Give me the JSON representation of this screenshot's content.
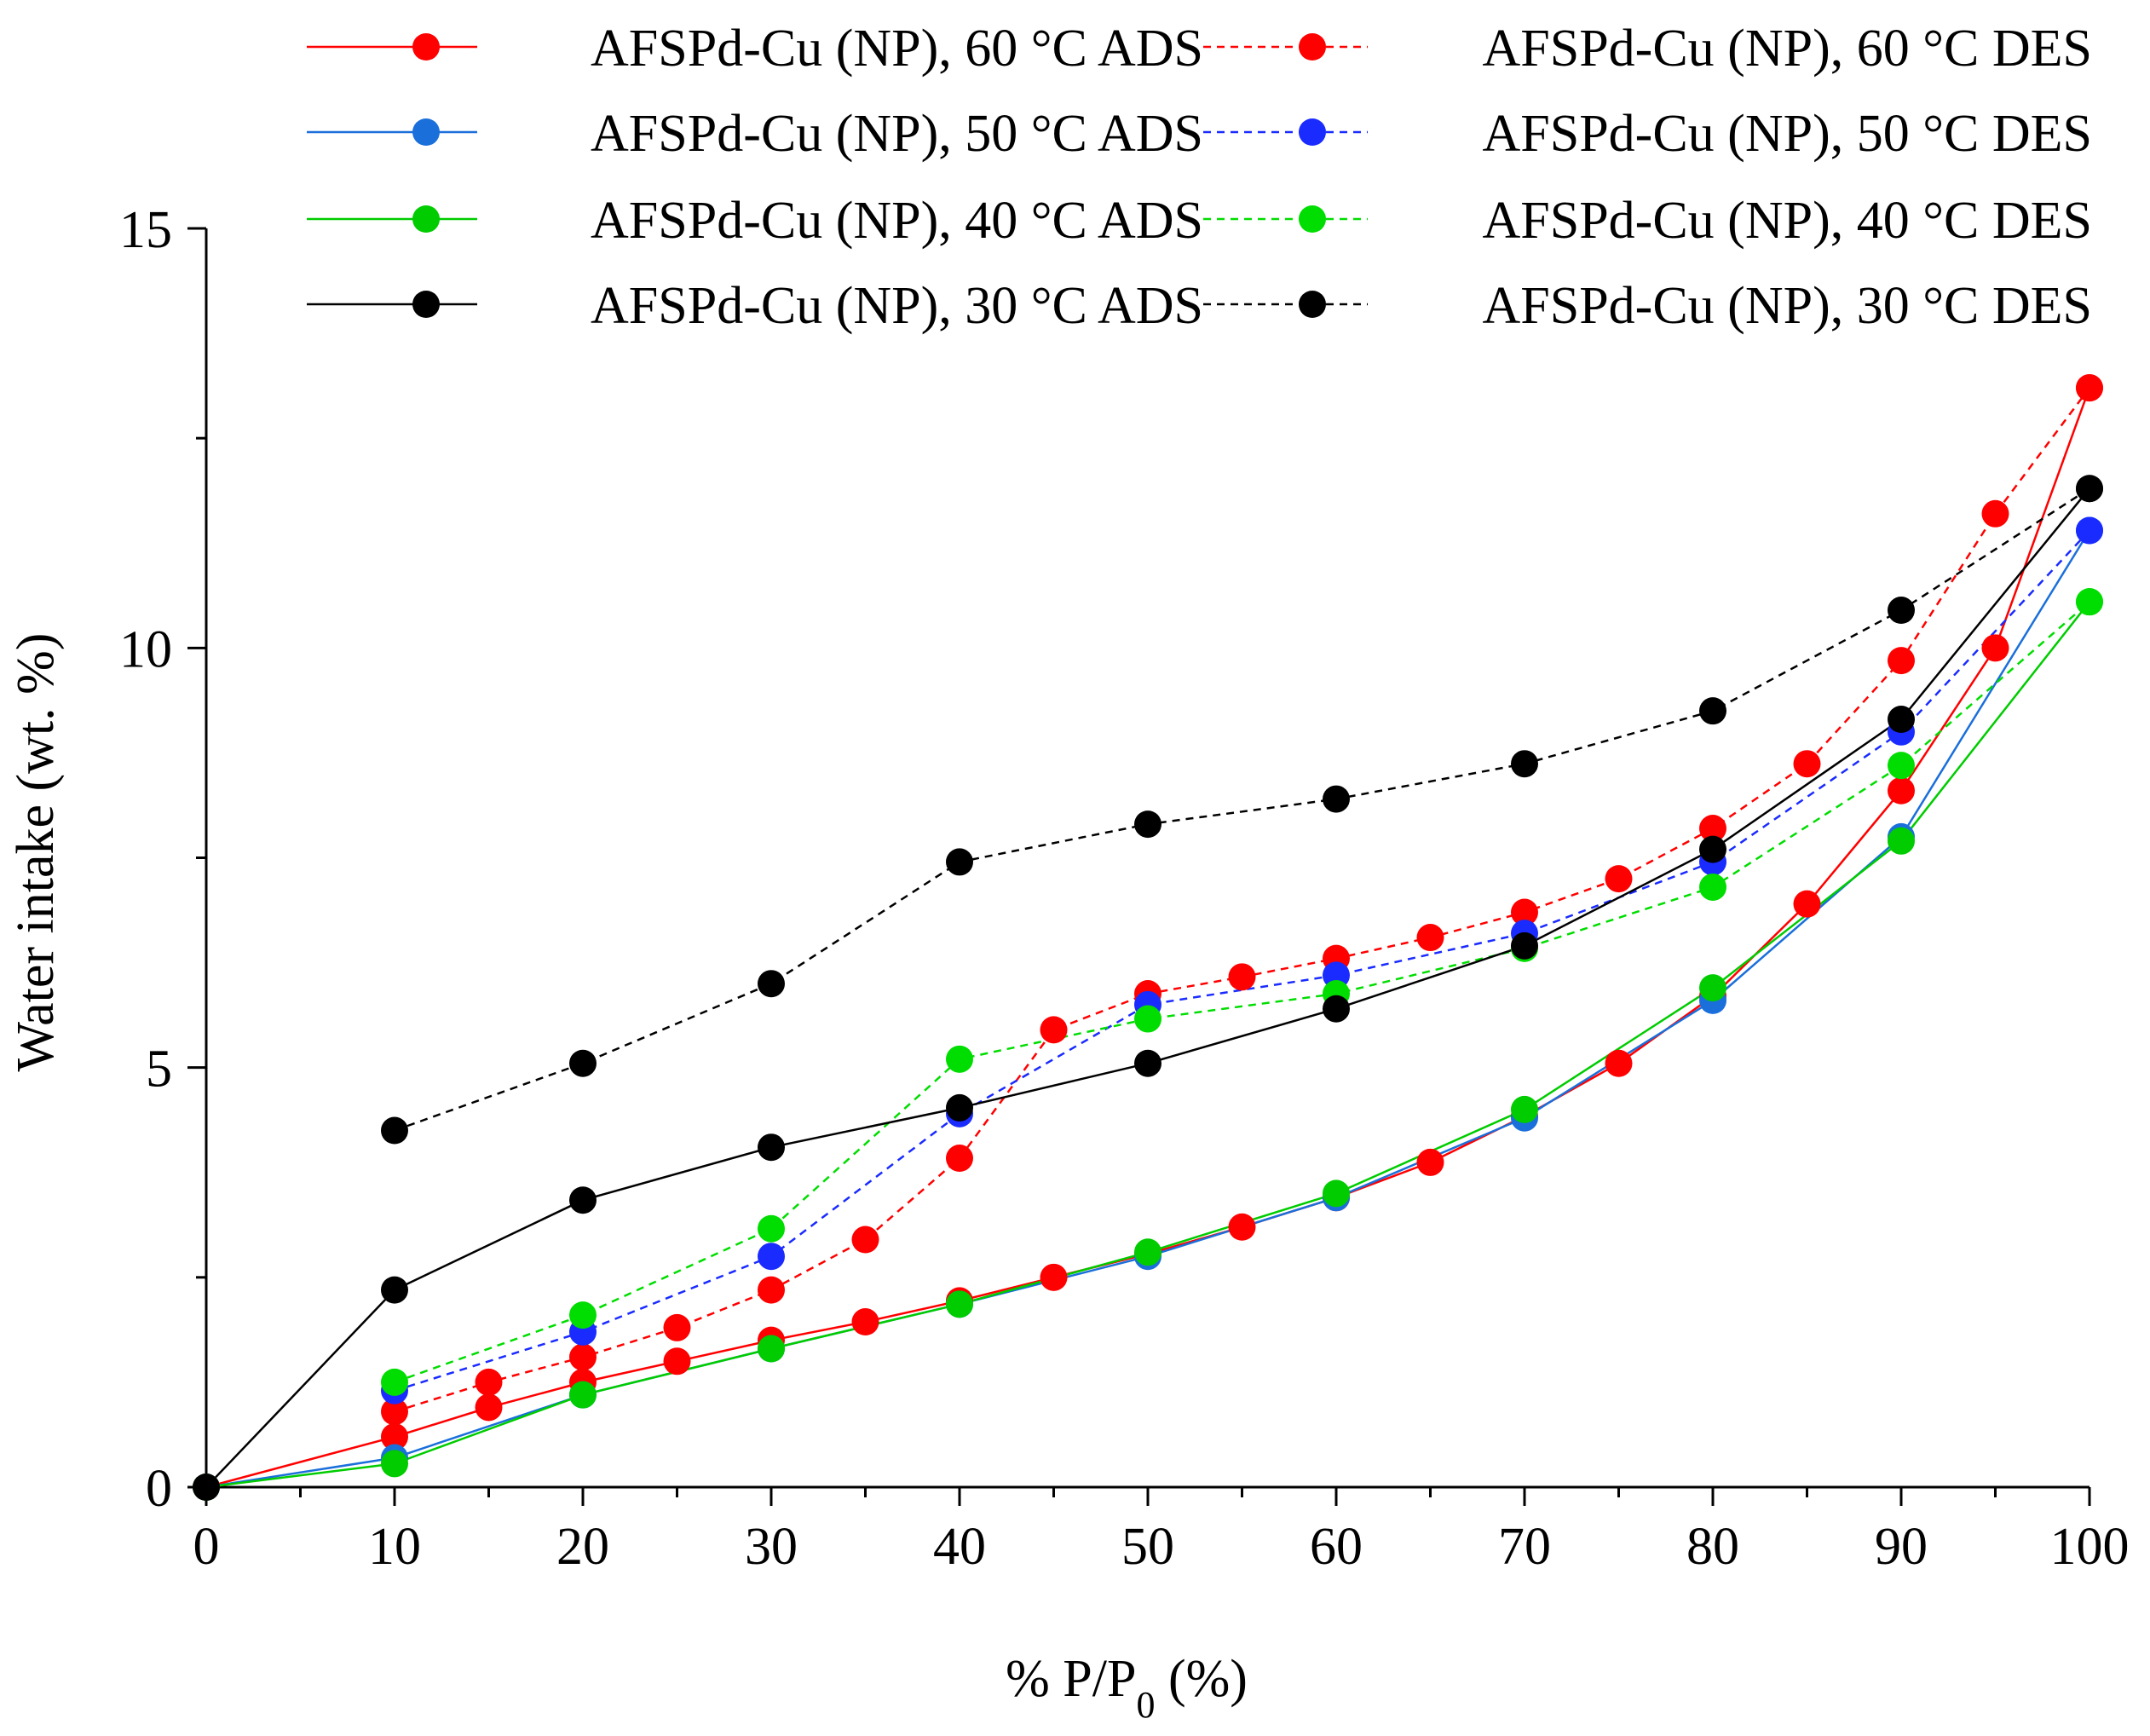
{
  "chart_data": {
    "type": "line",
    "title": "",
    "xlabel_prefix": "% P/P",
    "xlabel_subscript": "0",
    "xlabel_suffix": " (%)",
    "ylabel": "Water intake (wt. %)",
    "xlim": [
      0,
      100
    ],
    "ylim": [
      0,
      15
    ],
    "x_ticks": [
      0,
      10,
      20,
      30,
      40,
      50,
      60,
      70,
      80,
      90,
      100
    ],
    "y_ticks": [
      0,
      5,
      10,
      15
    ],
    "legend_position": "top",
    "series": [
      {
        "name": "AFSPd-Cu (NP), 60 °C ADS",
        "color": "#ff0000",
        "dash": "solid",
        "x": [
          0,
          10,
          15,
          20,
          25,
          30,
          35,
          40,
          45,
          50,
          55,
          60,
          65,
          70,
          75,
          80,
          85,
          90,
          95,
          100
        ],
        "y": [
          0,
          0.6,
          0.95,
          1.25,
          1.5,
          1.75,
          1.97,
          2.22,
          2.5,
          2.78,
          3.1,
          3.45,
          3.87,
          4.42,
          5.05,
          5.85,
          6.95,
          8.3,
          10.0,
          13.1
        ]
      },
      {
        "name": "AFSPd-Cu (NP), 60 °C DES",
        "color": "#ff0000",
        "dash": "dashed",
        "x": [
          10,
          15,
          20,
          25,
          30,
          35,
          40,
          45,
          50,
          55,
          60,
          65,
          70,
          75,
          80,
          85,
          90,
          95,
          100
        ],
        "y": [
          0.9,
          1.25,
          1.55,
          1.9,
          2.35,
          2.95,
          3.92,
          5.45,
          5.88,
          6.08,
          6.3,
          6.55,
          6.85,
          7.25,
          7.85,
          8.62,
          9.85,
          11.6,
          13.1
        ]
      },
      {
        "name": "AFSPd-Cu (NP), 50 °C ADS",
        "color": "#1a6fdb",
        "dash": "solid",
        "x": [
          0,
          10,
          20,
          30,
          40,
          50,
          60,
          70,
          80,
          90,
          100
        ],
        "y": [
          0,
          0.35,
          1.1,
          1.65,
          2.18,
          2.75,
          3.45,
          4.4,
          5.8,
          7.75,
          11.4
        ]
      },
      {
        "name": "AFSPd-Cu (NP), 50 °C DES",
        "color": "#1a2bff",
        "dash": "dashed",
        "x": [
          10,
          20,
          30,
          40,
          50,
          60,
          70,
          80,
          90,
          100
        ],
        "y": [
          1.15,
          1.85,
          2.75,
          4.45,
          5.75,
          6.1,
          6.6,
          7.45,
          9.0,
          11.4
        ]
      },
      {
        "name": "AFSPd-Cu (NP), 40 °C ADS",
        "color": "#00cc00",
        "dash": "solid",
        "x": [
          0,
          10,
          20,
          30,
          40,
          50,
          60,
          70,
          80,
          90,
          100
        ],
        "y": [
          0,
          0.28,
          1.1,
          1.65,
          2.18,
          2.8,
          3.5,
          4.5,
          5.95,
          7.7,
          10.55
        ]
      },
      {
        "name": "AFSPd-Cu (NP), 40 °C DES",
        "color": "#00dd00",
        "dash": "dashed",
        "x": [
          10,
          20,
          30,
          40,
          50,
          60,
          70,
          80,
          90,
          100
        ],
        "y": [
          1.25,
          2.05,
          3.08,
          5.1,
          5.58,
          5.88,
          6.42,
          7.15,
          8.6,
          10.55
        ]
      },
      {
        "name": "AFSPd-Cu (NP), 30 °C ADS",
        "color": "#000000",
        "dash": "solid",
        "x": [
          0,
          10,
          20,
          30,
          40,
          50,
          60,
          70,
          80,
          90,
          100
        ],
        "y": [
          0,
          2.35,
          3.42,
          4.05,
          4.52,
          5.05,
          5.7,
          6.45,
          7.6,
          9.15,
          11.9
        ]
      },
      {
        "name": "AFSPd-Cu (NP), 30 °C DES",
        "color": "#000000",
        "dash": "dashed",
        "x": [
          10,
          20,
          30,
          40,
          50,
          60,
          70,
          80,
          90,
          100
        ],
        "y": [
          4.25,
          5.05,
          6.0,
          7.45,
          7.9,
          8.2,
          8.62,
          9.25,
          10.45,
          11.9
        ]
      }
    ],
    "legend": [
      {
        "row": 0,
        "col": 0,
        "series": 0
      },
      {
        "row": 0,
        "col": 1,
        "series": 1
      },
      {
        "row": 1,
        "col": 0,
        "series": 2
      },
      {
        "row": 1,
        "col": 1,
        "series": 3
      },
      {
        "row": 2,
        "col": 0,
        "series": 4
      },
      {
        "row": 2,
        "col": 1,
        "series": 5
      },
      {
        "row": 3,
        "col": 0,
        "series": 6
      },
      {
        "row": 3,
        "col": 1,
        "series": 7
      }
    ]
  }
}
